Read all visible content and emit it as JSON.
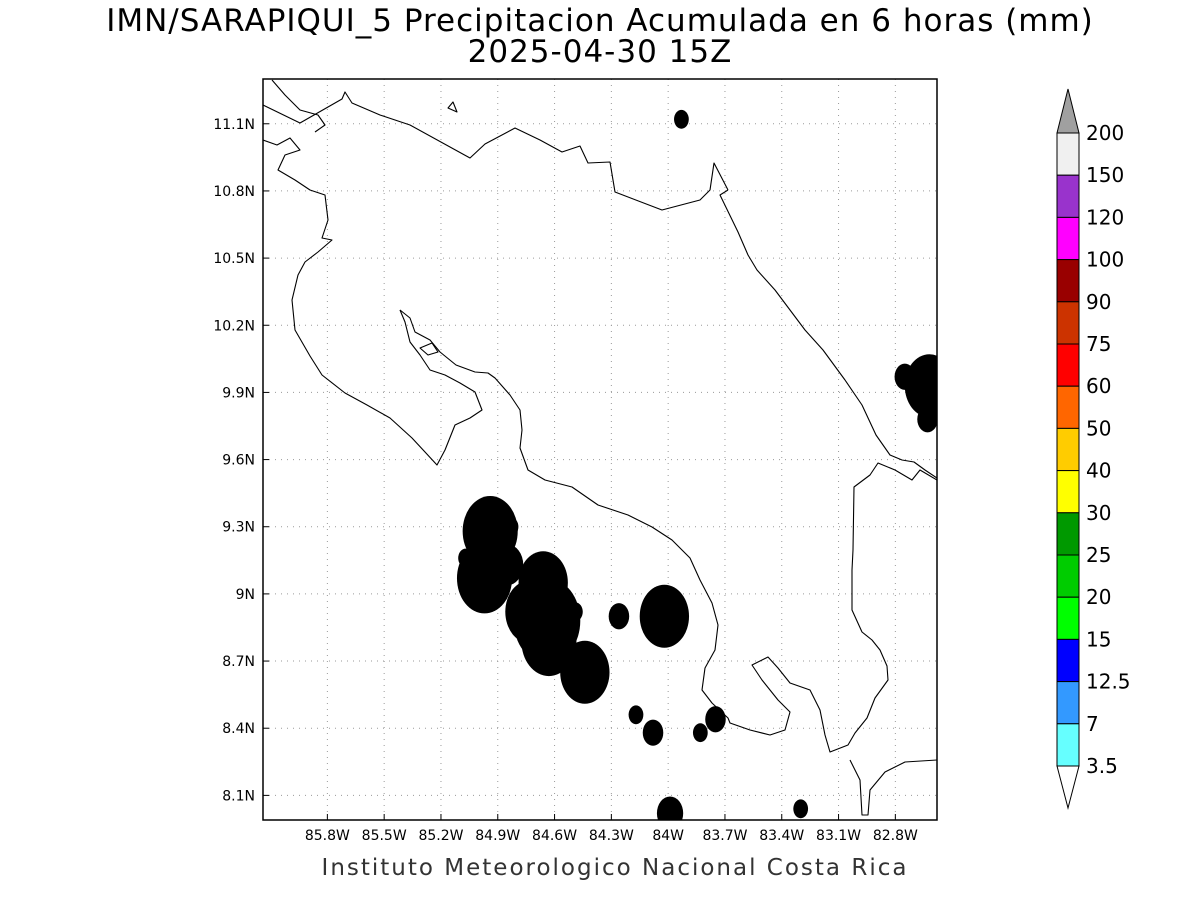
{
  "title": {
    "line1": "IMN/SARAPIQUI_5 Precipitacion Acumulada en 6 horas (mm)",
    "line2": "2025-04-30 15Z"
  },
  "footer": "Instituto Meteorologico Nacional Costa Rica",
  "map": {
    "lon_range": [
      -86.14,
      -82.58
    ],
    "lat_range": [
      7.99,
      11.3
    ],
    "lon_labels": [
      {
        "lon": -85.8,
        "label": "85.8W"
      },
      {
        "lon": -85.5,
        "label": "85.5W"
      },
      {
        "lon": -85.2,
        "label": "85.2W"
      },
      {
        "lon": -84.9,
        "label": "84.9W"
      },
      {
        "lon": -84.6,
        "label": "84.6W"
      },
      {
        "lon": -84.3,
        "label": "84.3W"
      },
      {
        "lon": -84.0,
        "label": "84W"
      },
      {
        "lon": -83.7,
        "label": "83.7W"
      },
      {
        "lon": -83.4,
        "label": "83.4W"
      },
      {
        "lon": -83.1,
        "label": "83.1W"
      },
      {
        "lon": -82.8,
        "label": "82.8W"
      }
    ],
    "lat_labels": [
      {
        "lat": 11.1,
        "label": "11.1N"
      },
      {
        "lat": 10.8,
        "label": "10.8N"
      },
      {
        "lat": 10.5,
        "label": "10.5N"
      },
      {
        "lat": 10.2,
        "label": "10.2N"
      },
      {
        "lat": 9.9,
        "label": "9.9N"
      },
      {
        "lat": 9.6,
        "label": "9.6N"
      },
      {
        "lat": 9.3,
        "label": "9.3N"
      },
      {
        "lat": 9.0,
        "label": "9N"
      },
      {
        "lat": 8.7,
        "label": "8.7N"
      },
      {
        "lat": 8.4,
        "label": "8.4N"
      },
      {
        "lat": 8.1,
        "label": "8.1N"
      }
    ],
    "grid": true
  },
  "colorbar": {
    "units": "mm",
    "top_color": "#a0a0a0",
    "bottom_color": "#ffffff",
    "bins": [
      {
        "color": "#f0f0f0"
      },
      {
        "color": "#9933cc"
      },
      {
        "color": "#ff00ff"
      },
      {
        "color": "#990000"
      },
      {
        "color": "#cc3300"
      },
      {
        "color": "#ff0000"
      },
      {
        "color": "#ff6600"
      },
      {
        "color": "#ffcc00"
      },
      {
        "color": "#ffff00"
      },
      {
        "color": "#009900"
      },
      {
        "color": "#00cc00"
      },
      {
        "color": "#00ff00"
      },
      {
        "color": "#0000ff"
      },
      {
        "color": "#3399ff"
      },
      {
        "color": "#66ffff"
      }
    ],
    "labels": [
      "200",
      "150",
      "120",
      "100",
      "90",
      "75",
      "60",
      "50",
      "40",
      "30",
      "25",
      "20",
      "15",
      "12.5",
      "7",
      "3.5"
    ]
  },
  "precip_cells": [
    {
      "lon": -84.94,
      "lat": 9.28,
      "max_mm": 40
    },
    {
      "lon": -84.97,
      "lat": 9.07,
      "max_mm": 40
    },
    {
      "lon": -84.85,
      "lat": 9.13,
      "max_mm": 15
    },
    {
      "lon": -84.66,
      "lat": 9.05,
      "max_mm": 30
    },
    {
      "lon": -84.64,
      "lat": 8.88,
      "max_mm": 60
    },
    {
      "lon": -84.73,
      "lat": 8.92,
      "max_mm": 30
    },
    {
      "lon": -84.63,
      "lat": 8.79,
      "max_mm": 40
    },
    {
      "lon": -84.44,
      "lat": 8.65,
      "max_mm": 30
    },
    {
      "lon": -84.02,
      "lat": 8.9,
      "max_mm": 30
    },
    {
      "lon": -82.62,
      "lat": 9.93,
      "max_mm": 30
    },
    {
      "lon": -82.63,
      "lat": 9.78,
      "max_mm": 7
    },
    {
      "lon": -82.75,
      "lat": 9.97,
      "max_mm": 7
    },
    {
      "lon": -83.93,
      "lat": 11.12,
      "max_mm": 3.5
    },
    {
      "lon": -83.75,
      "lat": 8.44,
      "max_mm": 7
    },
    {
      "lon": -84.17,
      "lat": 8.46,
      "max_mm": 3.5
    },
    {
      "lon": -84.08,
      "lat": 8.38,
      "max_mm": 7
    },
    {
      "lon": -84.26,
      "lat": 8.9,
      "max_mm": 7
    },
    {
      "lon": -83.99,
      "lat": 8.02,
      "max_mm": 12.5
    },
    {
      "lon": -83.3,
      "lat": 8.04,
      "max_mm": 3.5
    },
    {
      "lon": -85.07,
      "lat": 9.16,
      "max_mm": 3.5
    },
    {
      "lon": -84.83,
      "lat": 9.3,
      "max_mm": 3.5
    },
    {
      "lon": -84.49,
      "lat": 8.92,
      "max_mm": 3.5
    },
    {
      "lon": -83.83,
      "lat": 8.38,
      "max_mm": 3.5
    }
  ]
}
